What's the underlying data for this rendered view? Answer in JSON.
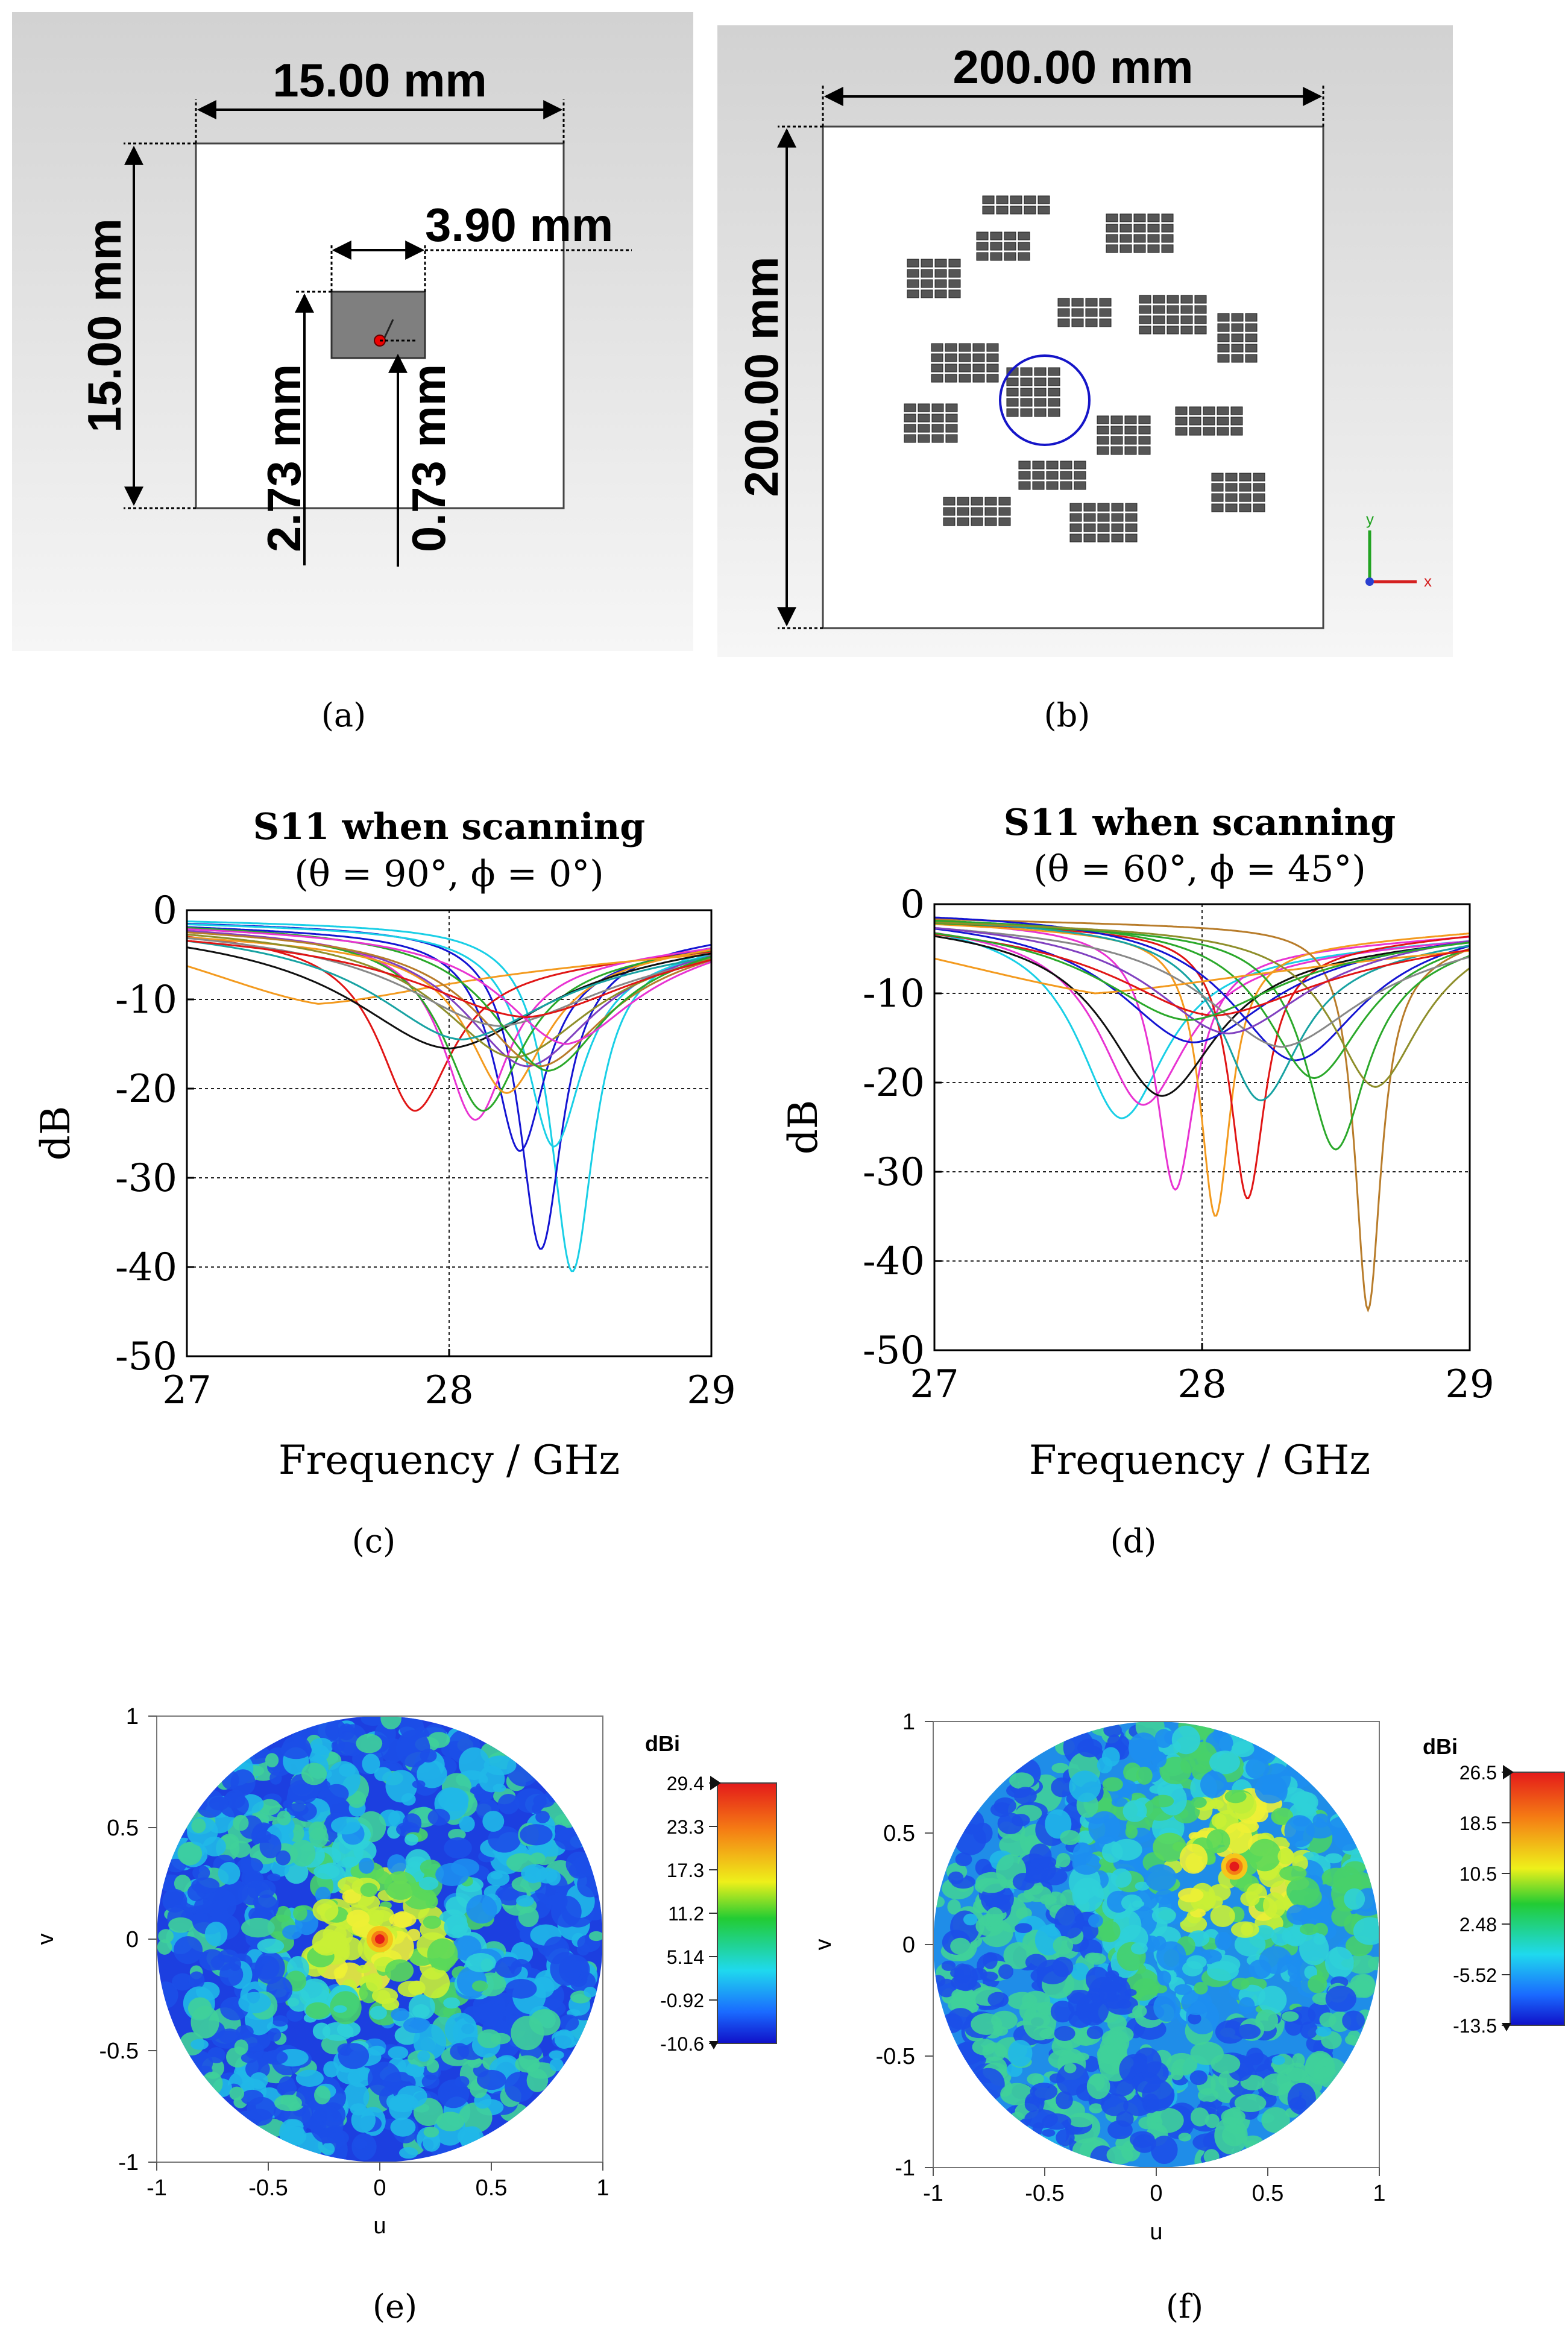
{
  "panels": [
    {
      "label": "(a)"
    },
    {
      "label": "(b)"
    },
    {
      "label": "(c)"
    },
    {
      "label": "(d)"
    },
    {
      "label": "(e)"
    },
    {
      "label": "(f)"
    }
  ],
  "element_model": {
    "dim_width": "15.00 mm",
    "dim_height": "15.00 mm",
    "dim_patch": "3.90 mm",
    "dim_offset_bottom": "2.73 mm",
    "dim_feed": "0.73 mm"
  },
  "array_model": {
    "dim_width": "200.00 mm",
    "dim_height": "200.00 mm",
    "axis_y": "y",
    "axis_x": "x"
  },
  "colors": {
    "blue": "#1414d2",
    "red": "#e01515",
    "cyan": "#19cfe6",
    "magenta": "#e833d2",
    "green": "#2aa82a",
    "orange": "#f39a1e",
    "black": "#101010",
    "brown": "#b87c2a",
    "olive": "#8e8e2a",
    "purple": "#8040c0",
    "gray": "#888888",
    "teal": "#17a2a2"
  },
  "chart_data": [
    {
      "panel": "c",
      "type": "line",
      "title": "S11 when scanning",
      "subtitle": "(θ = 90°, ϕ = 0°)",
      "xlabel": "Frequency / GHz",
      "ylabel": "dB",
      "xlim": [
        27,
        29
      ],
      "ylim": [
        -50,
        0
      ],
      "xticks": [
        "27",
        "28",
        "29"
      ],
      "yticks": [
        "0",
        "-10",
        "-20",
        "-30",
        "-40",
        "-50"
      ],
      "grid_x": [
        28
      ],
      "grid_y": [
        -10,
        -20,
        -30,
        -40
      ],
      "series": [
        {
          "color": "cyan",
          "f0": 28.47,
          "depth": 40.5,
          "width": 0.1,
          "start": 1.8,
          "end": 5.6
        },
        {
          "color": "blue",
          "f0": 28.35,
          "depth": 38,
          "width": 0.1,
          "start": 2.2,
          "end": 5.2
        },
        {
          "color": "blue",
          "f0": 28.27,
          "depth": 27,
          "width": 0.12,
          "start": 2.8,
          "end": 6.2
        },
        {
          "color": "cyan",
          "f0": 28.4,
          "depth": 26.5,
          "width": 0.13,
          "start": 2.3,
          "end": 6.8
        },
        {
          "color": "red",
          "f0": 27.87,
          "depth": 22.5,
          "width": 0.17,
          "start": 3.8,
          "end": 7.2
        },
        {
          "color": "magenta",
          "f0": 28.1,
          "depth": 23.5,
          "width": 0.15,
          "start": 3.3,
          "end": 6.4
        },
        {
          "color": "green",
          "f0": 28.13,
          "depth": 22.5,
          "width": 0.18,
          "start": 3.1,
          "end": 6.4
        },
        {
          "color": "orange",
          "f0": 28.22,
          "depth": 20.5,
          "width": 0.18,
          "start": 4.5,
          "end": 6.2
        },
        {
          "color": "orange",
          "f0": 27.5,
          "depth": 10.5,
          "width": 0.6,
          "start": 6.2,
          "end": 7.5
        },
        {
          "color": "black",
          "f0": 28.0,
          "depth": 15.5,
          "width": 0.45,
          "start": 3.6,
          "end": 5.2
        },
        {
          "color": "purple",
          "f0": 28.3,
          "depth": 17.5,
          "width": 0.3,
          "start": 2.6,
          "end": 5.4
        },
        {
          "color": "olive",
          "f0": 28.25,
          "depth": 16.5,
          "width": 0.35,
          "start": 2.9,
          "end": 5.9
        },
        {
          "color": "teal",
          "f0": 28.05,
          "depth": 14.5,
          "width": 0.4,
          "start": 3.4,
          "end": 6.8
        },
        {
          "color": "brown",
          "f0": 28.35,
          "depth": 17.5,
          "width": 0.3,
          "start": 3.0,
          "end": 6.0
        },
        {
          "color": "gray",
          "f0": 28.2,
          "depth": 13,
          "width": 0.45,
          "start": 3.2,
          "end": 7.0
        },
        {
          "color": "green",
          "f0": 28.38,
          "depth": 18,
          "width": 0.26,
          "start": 2.4,
          "end": 5.6
        },
        {
          "color": "magenta",
          "f0": 28.45,
          "depth": 15,
          "width": 0.3,
          "start": 2.7,
          "end": 6.4
        },
        {
          "color": "red",
          "f0": 28.3,
          "depth": 12,
          "width": 0.5,
          "start": 4.0,
          "end": 5.8
        }
      ]
    },
    {
      "panel": "d",
      "type": "line",
      "title": "S11 when scanning",
      "subtitle": "(θ = 60°, ϕ = 45°)",
      "xlabel": "Frequency / GHz",
      "ylabel": "dB",
      "xlim": [
        27,
        29
      ],
      "ylim": [
        -50,
        0
      ],
      "xticks": [
        "27",
        "28",
        "29"
      ],
      "yticks": [
        "0",
        "-10",
        "-20",
        "-30",
        "-40",
        "-50"
      ],
      "grid_x": [
        28
      ],
      "grid_y": [
        -10,
        -20,
        -30,
        -40
      ],
      "series": [
        {
          "color": "cyan",
          "f0": 27.7,
          "depth": 24,
          "width": 0.2,
          "start": 2.8,
          "end": 6.2
        },
        {
          "color": "magenta",
          "f0": 27.9,
          "depth": 32,
          "width": 0.09,
          "start": 3.0,
          "end": 5.8
        },
        {
          "color": "magenta",
          "f0": 27.78,
          "depth": 22.5,
          "width": 0.2,
          "start": 3.4,
          "end": 6.2
        },
        {
          "color": "orange",
          "f0": 28.05,
          "depth": 35,
          "width": 0.07,
          "start": 3.5,
          "end": 5.2
        },
        {
          "color": "red",
          "f0": 28.17,
          "depth": 33,
          "width": 0.08,
          "start": 3.3,
          "end": 5.6
        },
        {
          "color": "brown",
          "f0": 28.62,
          "depth": 45.5,
          "width": 0.06,
          "start": 2.7,
          "end": 6.8
        },
        {
          "color": "green",
          "f0": 28.5,
          "depth": 27.5,
          "width": 0.14,
          "start": 3.2,
          "end": 7.2
        },
        {
          "color": "black",
          "f0": 27.85,
          "depth": 21.5,
          "width": 0.25,
          "start": 3.6,
          "end": 6.0
        },
        {
          "color": "blue",
          "f0": 28.35,
          "depth": 17.5,
          "width": 0.3,
          "start": 1.2,
          "end": 3.8
        },
        {
          "color": "blue",
          "f0": 27.97,
          "depth": 15.5,
          "width": 0.35,
          "start": 2.0,
          "end": 5.2
        },
        {
          "color": "teal",
          "f0": 28.22,
          "depth": 22,
          "width": 0.18,
          "start": 2.6,
          "end": 6.4
        },
        {
          "color": "green",
          "f0": 28.42,
          "depth": 19.5,
          "width": 0.22,
          "start": 2.4,
          "end": 5.4
        },
        {
          "color": "olive",
          "f0": 28.65,
          "depth": 20.5,
          "width": 0.2,
          "start": 3.0,
          "end": 6.0
        },
        {
          "color": "gray",
          "f0": 28.3,
          "depth": 16,
          "width": 0.35,
          "start": 3.0,
          "end": 6.8
        },
        {
          "color": "orange",
          "f0": 27.6,
          "depth": 10,
          "width": 0.8,
          "start": 7.5,
          "end": 7.8
        },
        {
          "color": "purple",
          "f0": 28.1,
          "depth": 14.5,
          "width": 0.35,
          "start": 2.6,
          "end": 4.8
        },
        {
          "color": "red",
          "f0": 28.05,
          "depth": 12.5,
          "width": 0.45,
          "start": 3.2,
          "end": 6.8
        },
        {
          "color": "green",
          "f0": 27.95,
          "depth": 13,
          "width": 0.4,
          "start": 2.9,
          "end": 5.6
        }
      ]
    },
    {
      "panel": "e",
      "type": "heatmap",
      "xlabel": "u",
      "ylabel": "v",
      "xlim": [
        -1,
        1
      ],
      "ylim": [
        -1,
        1
      ],
      "xticks": [
        "-1",
        "-0.5",
        "0",
        "0.5",
        "1"
      ],
      "yticks": [
        "1",
        "0.5",
        "0",
        "-0.5",
        "-1"
      ],
      "beam_u": 0.0,
      "beam_v": 0.0,
      "colorbar_title": "dBi",
      "colorbar_ticks": [
        "29.4",
        "23.3",
        "17.3",
        "11.2",
        "5.14",
        "-0.92",
        "-10.6"
      ],
      "range": [
        -10.6,
        29.4
      ]
    },
    {
      "panel": "f",
      "type": "heatmap",
      "xlabel": "u",
      "ylabel": "v",
      "xlim": [
        -1,
        1
      ],
      "ylim": [
        -1,
        1
      ],
      "xticks": [
        "-1",
        "-0.5",
        "0",
        "0.5",
        "1"
      ],
      "yticks": [
        "1",
        "0.5",
        "0",
        "-0.5",
        "-1"
      ],
      "beam_u": 0.35,
      "beam_v": 0.35,
      "colorbar_title": "dBi",
      "colorbar_ticks": [
        "26.5",
        "18.5",
        "10.5",
        "2.48",
        "-5.52",
        "-13.5"
      ],
      "range": [
        -13.5,
        26.5
      ]
    }
  ]
}
